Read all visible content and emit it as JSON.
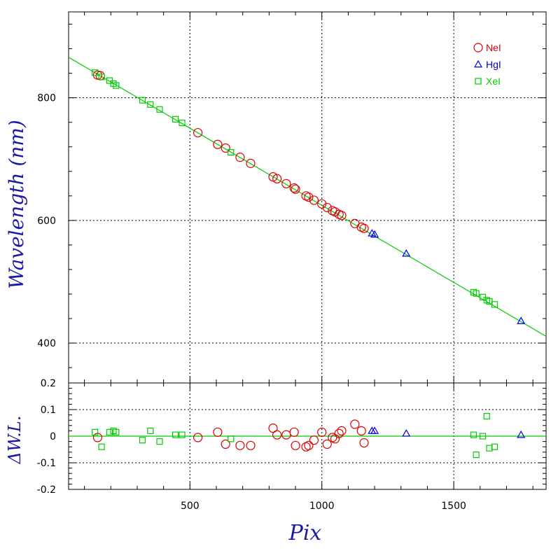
{
  "chart_data": [
    {
      "type": "scatter",
      "title": "",
      "xlabel": "Pix",
      "ylabel": "Wavelength (nm)",
      "xlim": [
        40,
        1850
      ],
      "ylim": [
        335,
        940
      ],
      "xticks": [
        500,
        1000,
        1500
      ],
      "yticks": [
        400,
        600,
        800
      ],
      "grid": true,
      "legend_position": "top-right",
      "fit_line": {
        "points": [
          [
            40,
            866
          ],
          [
            1850,
            411
          ]
        ],
        "color": "#00cc00"
      },
      "series": [
        {
          "name": "NeI",
          "marker": "circle",
          "color": "#dd0000",
          "x": [
            150,
            160,
            530,
            605,
            635,
            690,
            730,
            815,
            830,
            865,
            895,
            900,
            940,
            950,
            970,
            1000,
            1020,
            1040,
            1050,
            1065,
            1075,
            1125,
            1150,
            1160
          ],
          "y": [
            837,
            836,
            743,
            724,
            718,
            703,
            693,
            671,
            668,
            660,
            653,
            651,
            640,
            638,
            633,
            627,
            621,
            616,
            614,
            610,
            608,
            595,
            589,
            587
          ]
        },
        {
          "name": "HgI",
          "marker": "triangle",
          "color": "#0000dd",
          "x": [
            1190,
            1200,
            1320,
            1755
          ],
          "y": [
            579,
            577,
            546,
            436
          ]
        },
        {
          "name": "XeI",
          "marker": "square",
          "color": "#00cc00",
          "x": [
            140,
            165,
            195,
            210,
            220,
            320,
            350,
            385,
            445,
            470,
            655,
            1575,
            1585,
            1610,
            1625,
            1635,
            1655
          ],
          "y": [
            841,
            834,
            828,
            823,
            820,
            796,
            789,
            781,
            765,
            759,
            711,
            483,
            481,
            475,
            470,
            468,
            463
          ]
        }
      ]
    },
    {
      "type": "scatter",
      "title": "",
      "xlabel": "Pix",
      "ylabel": "ΔW.L.",
      "xlim": [
        40,
        1850
      ],
      "ylim": [
        -0.2,
        0.2
      ],
      "xticks": [
        500,
        1000,
        1500
      ],
      "yticks": [
        -0.2,
        -0.1,
        0,
        0.1,
        0.2
      ],
      "ytick_labels": [
        "-0.2",
        "-0.1",
        "0",
        "0.1",
        "0.2"
      ],
      "grid": true,
      "zero_line_color": "#00cc00",
      "series": [
        {
          "name": "NeI",
          "marker": "circle",
          "color": "#dd0000",
          "x": [
            150,
            530,
            605,
            635,
            690,
            730,
            815,
            830,
            865,
            895,
            900,
            940,
            950,
            970,
            1000,
            1020,
            1040,
            1050,
            1065,
            1075,
            1125,
            1150,
            1160
          ],
          "y": [
            -0.005,
            -0.005,
            0.015,
            -0.03,
            -0.035,
            -0.035,
            0.03,
            0.005,
            0.005,
            0.015,
            -0.035,
            -0.04,
            -0.035,
            -0.015,
            0.015,
            -0.03,
            -0.005,
            -0.01,
            0.01,
            0.02,
            0.045,
            0.02,
            -0.025
          ]
        },
        {
          "name": "HgI",
          "marker": "triangle",
          "color": "#0000dd",
          "x": [
            1190,
            1200,
            1320,
            1755
          ],
          "y": [
            0.02,
            0.02,
            0.01,
            0.005
          ]
        },
        {
          "name": "XeI",
          "marker": "square",
          "color": "#00cc00",
          "x": [
            140,
            165,
            195,
            210,
            220,
            320,
            350,
            385,
            445,
            470,
            655,
            1575,
            1585,
            1610,
            1625,
            1635,
            1655
          ],
          "y": [
            0.015,
            -0.04,
            0.015,
            0.02,
            0.015,
            -0.015,
            0.02,
            -0.02,
            0.005,
            0.005,
            -0.01,
            0.005,
            -0.07,
            0,
            0.075,
            -0.045,
            -0.04
          ]
        }
      ]
    }
  ],
  "legend": [
    {
      "label": "NeI",
      "marker": "circle",
      "color": "#dd0000"
    },
    {
      "label": "HgI",
      "marker": "triangle",
      "color": "#0000dd"
    },
    {
      "label": "XeI",
      "marker": "square",
      "color": "#00cc00"
    }
  ]
}
